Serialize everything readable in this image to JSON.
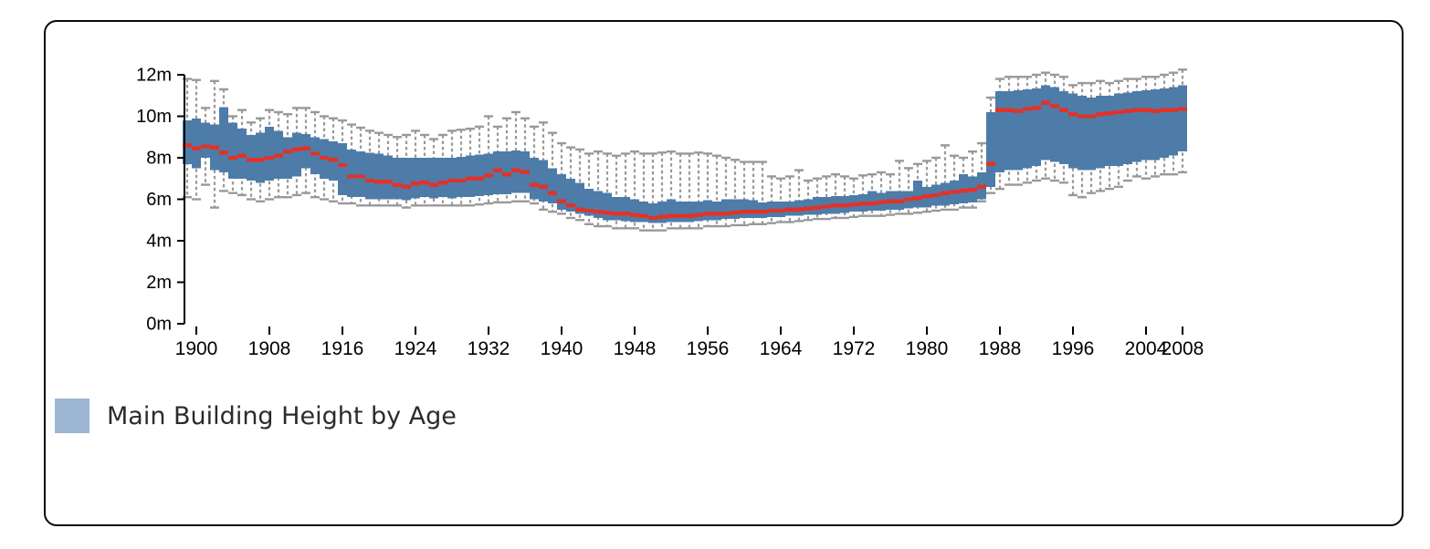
{
  "legend": {
    "label": "Main Building Height by Age",
    "swatch_color": "#9cb6d3"
  },
  "chart_data": {
    "type": "boxplot",
    "title": "Main Building Height by Age",
    "unit": "m",
    "xlabel": "",
    "ylabel": "",
    "grid": false,
    "legend_position": "bottom-left",
    "ylim": [
      0,
      12
    ],
    "xlim": [
      1898.5,
      2009.5
    ],
    "y_tick_labels": [
      "0m",
      "2m",
      "4m",
      "6m",
      "8m",
      "10m",
      "12m"
    ],
    "y_tick_values": [
      0,
      2,
      4,
      6,
      8,
      10,
      12
    ],
    "x_tick_labels": [
      "1900",
      "1908",
      "1916",
      "1924",
      "1932",
      "1940",
      "1948",
      "1956",
      "1964",
      "1972",
      "1980",
      "1988",
      "1996",
      "2004",
      "2008"
    ],
    "x_tick_values": [
      1900,
      1908,
      1916,
      1924,
      1932,
      1940,
      1948,
      1956,
      1964,
      1972,
      1980,
      1988,
      1996,
      2004,
      2008
    ],
    "colors": {
      "box_fill": "#4d7ca8",
      "median": "#e23227",
      "whisker": "#999999",
      "axis": "#000000",
      "tick_text": "#000000",
      "legend_swatch": "#9cb6d3"
    },
    "columns": [
      "year",
      "min",
      "q1",
      "median",
      "q3",
      "max"
    ],
    "rows": [
      [
        1899,
        6.1,
        7.7,
        8.6,
        9.8,
        11.8
      ],
      [
        1900,
        6.0,
        7.5,
        8.45,
        9.9,
        11.75
      ],
      [
        1901,
        6.7,
        8.0,
        8.55,
        9.7,
        10.4
      ],
      [
        1902,
        5.6,
        7.4,
        8.5,
        9.6,
        11.7
      ],
      [
        1903,
        6.4,
        7.3,
        8.25,
        10.45,
        11.3
      ],
      [
        1904,
        6.3,
        7.0,
        8.0,
        9.7,
        10.0
      ],
      [
        1905,
        6.2,
        7.0,
        8.1,
        9.4,
        10.3
      ],
      [
        1906,
        6.0,
        6.9,
        7.9,
        9.1,
        9.7
      ],
      [
        1907,
        5.9,
        6.8,
        7.9,
        9.2,
        9.9
      ],
      [
        1908,
        6.0,
        6.9,
        8.0,
        9.5,
        10.3
      ],
      [
        1909,
        6.1,
        7.0,
        8.1,
        9.3,
        10.2
      ],
      [
        1910,
        6.1,
        7.0,
        8.3,
        9.0,
        10.1
      ],
      [
        1911,
        6.2,
        7.1,
        8.4,
        9.2,
        10.4
      ],
      [
        1912,
        6.3,
        7.5,
        8.45,
        9.15,
        10.4
      ],
      [
        1913,
        6.1,
        7.2,
        8.2,
        9.0,
        10.2
      ],
      [
        1914,
        6.0,
        7.0,
        8.0,
        8.9,
        10.0
      ],
      [
        1915,
        5.9,
        6.9,
        7.9,
        8.8,
        9.9
      ],
      [
        1916,
        5.8,
        6.2,
        7.65,
        8.7,
        9.8
      ],
      [
        1917,
        5.8,
        6.1,
        7.1,
        8.4,
        9.6
      ],
      [
        1918,
        5.7,
        6.1,
        7.1,
        8.3,
        9.45
      ],
      [
        1919,
        5.7,
        6.0,
        6.9,
        8.25,
        9.3
      ],
      [
        1920,
        5.7,
        6.0,
        6.85,
        8.2,
        9.2
      ],
      [
        1921,
        5.7,
        6.0,
        6.85,
        8.1,
        9.1
      ],
      [
        1922,
        5.7,
        6.0,
        6.7,
        8.0,
        9.0
      ],
      [
        1923,
        5.6,
        5.95,
        6.6,
        8.0,
        9.1
      ],
      [
        1924,
        5.7,
        6.05,
        6.75,
        8.0,
        9.3
      ],
      [
        1925,
        5.7,
        6.1,
        6.8,
        8.0,
        9.1
      ],
      [
        1926,
        5.7,
        6.05,
        6.7,
        8.0,
        8.9
      ],
      [
        1927,
        5.7,
        6.1,
        6.8,
        8.0,
        9.1
      ],
      [
        1928,
        5.7,
        6.05,
        6.9,
        8.0,
        9.3
      ],
      [
        1929,
        5.7,
        6.1,
        6.9,
        8.05,
        9.35
      ],
      [
        1930,
        5.7,
        6.1,
        7.0,
        8.1,
        9.4
      ],
      [
        1931,
        5.75,
        6.15,
        7.0,
        8.15,
        9.5
      ],
      [
        1932,
        5.8,
        6.2,
        7.15,
        8.2,
        10.0
      ],
      [
        1933,
        5.85,
        6.25,
        7.4,
        8.3,
        9.5
      ],
      [
        1934,
        5.85,
        6.25,
        7.2,
        8.3,
        9.9
      ],
      [
        1935,
        5.9,
        6.3,
        7.4,
        8.35,
        10.2
      ],
      [
        1936,
        5.9,
        6.3,
        7.3,
        8.3,
        9.9
      ],
      [
        1937,
        5.8,
        6.0,
        6.7,
        8.0,
        9.5
      ],
      [
        1938,
        5.5,
        5.9,
        6.6,
        7.9,
        9.7
      ],
      [
        1939,
        5.4,
        5.8,
        6.3,
        7.5,
        9.2
      ],
      [
        1940,
        5.3,
        5.5,
        5.9,
        7.2,
        8.7
      ],
      [
        1941,
        5.1,
        5.4,
        5.7,
        7.0,
        8.5
      ],
      [
        1942,
        5.0,
        5.3,
        5.5,
        6.8,
        8.4
      ],
      [
        1943,
        4.8,
        5.2,
        5.45,
        6.5,
        8.2
      ],
      [
        1944,
        4.7,
        5.1,
        5.4,
        6.4,
        8.3
      ],
      [
        1945,
        4.7,
        5.0,
        5.35,
        6.3,
        8.2
      ],
      [
        1946,
        4.6,
        5.0,
        5.3,
        6.1,
        8.1
      ],
      [
        1947,
        4.6,
        4.95,
        5.3,
        6.1,
        8.2
      ],
      [
        1948,
        4.6,
        4.9,
        5.25,
        6.0,
        8.3
      ],
      [
        1949,
        4.5,
        4.9,
        5.2,
        5.9,
        8.2
      ],
      [
        1950,
        4.5,
        4.85,
        5.1,
        5.8,
        8.2
      ],
      [
        1951,
        4.5,
        4.85,
        5.15,
        5.9,
        8.25
      ],
      [
        1952,
        4.6,
        4.9,
        5.2,
        6.0,
        8.3
      ],
      [
        1953,
        4.6,
        4.9,
        5.2,
        5.9,
        8.2
      ],
      [
        1954,
        4.6,
        4.9,
        5.2,
        5.9,
        8.2
      ],
      [
        1955,
        4.6,
        4.95,
        5.25,
        5.9,
        8.25
      ],
      [
        1956,
        4.7,
        5.0,
        5.3,
        5.95,
        8.2
      ],
      [
        1957,
        4.7,
        5.0,
        5.3,
        5.9,
        8.1
      ],
      [
        1958,
        4.7,
        5.05,
        5.3,
        6.0,
        8.0
      ],
      [
        1959,
        4.75,
        5.05,
        5.35,
        6.0,
        7.9
      ],
      [
        1960,
        4.75,
        5.1,
        5.4,
        6.0,
        7.8
      ],
      [
        1961,
        4.8,
        5.1,
        5.4,
        5.95,
        7.8
      ],
      [
        1962,
        4.8,
        5.1,
        5.4,
        5.85,
        7.8
      ],
      [
        1963,
        4.85,
        5.15,
        5.45,
        5.9,
        7.1
      ],
      [
        1964,
        4.9,
        5.15,
        5.45,
        5.9,
        7.0
      ],
      [
        1965,
        4.9,
        5.2,
        5.5,
        5.9,
        7.1
      ],
      [
        1966,
        4.95,
        5.2,
        5.5,
        5.95,
        7.4
      ],
      [
        1967,
        5.0,
        5.25,
        5.55,
        6.0,
        6.9
      ],
      [
        1968,
        5.05,
        5.25,
        5.6,
        6.1,
        7.0
      ],
      [
        1969,
        5.05,
        5.3,
        5.65,
        6.1,
        7.1
      ],
      [
        1970,
        5.1,
        5.3,
        5.7,
        6.15,
        7.2
      ],
      [
        1971,
        5.1,
        5.35,
        5.7,
        6.15,
        7.1
      ],
      [
        1972,
        5.15,
        5.4,
        5.75,
        6.2,
        7.0
      ],
      [
        1973,
        5.2,
        5.4,
        5.8,
        6.25,
        7.15
      ],
      [
        1974,
        5.2,
        5.45,
        5.8,
        6.4,
        7.2
      ],
      [
        1975,
        5.2,
        5.45,
        5.85,
        6.3,
        7.3
      ],
      [
        1976,
        5.25,
        5.5,
        5.9,
        6.4,
        7.2
      ],
      [
        1977,
        5.3,
        5.5,
        5.9,
        6.4,
        7.85
      ],
      [
        1978,
        5.3,
        5.55,
        6.0,
        6.4,
        7.5
      ],
      [
        1979,
        5.35,
        5.6,
        6.05,
        6.9,
        7.7
      ],
      [
        1980,
        5.4,
        5.6,
        6.15,
        6.6,
        7.85
      ],
      [
        1981,
        5.45,
        5.7,
        6.2,
        6.7,
        8.0
      ],
      [
        1982,
        5.5,
        5.7,
        6.3,
        6.8,
        8.6
      ],
      [
        1983,
        5.5,
        5.75,
        6.35,
        6.9,
        8.1
      ],
      [
        1984,
        5.6,
        5.8,
        6.4,
        7.2,
        8.0
      ],
      [
        1985,
        5.6,
        5.85,
        6.45,
        7.1,
        8.3
      ],
      [
        1986,
        5.9,
        6.0,
        6.6,
        7.3,
        8.7
      ],
      [
        1987,
        6.3,
        6.6,
        7.7,
        10.2,
        10.9
      ],
      [
        1988,
        6.5,
        7.3,
        10.3,
        11.2,
        11.8
      ],
      [
        1989,
        6.7,
        7.4,
        10.3,
        11.2,
        11.9
      ],
      [
        1990,
        6.7,
        7.4,
        10.25,
        11.25,
        11.9
      ],
      [
        1991,
        6.8,
        7.5,
        10.35,
        11.3,
        11.9
      ],
      [
        1992,
        6.9,
        7.6,
        10.4,
        11.35,
        12.0
      ],
      [
        1993,
        7.0,
        7.9,
        10.65,
        11.5,
        12.1
      ],
      [
        1994,
        6.9,
        7.8,
        10.5,
        11.4,
        12.0
      ],
      [
        1995,
        6.8,
        7.7,
        10.3,
        11.2,
        11.9
      ],
      [
        1996,
        6.2,
        7.5,
        10.1,
        11.1,
        11.5
      ],
      [
        1997,
        6.1,
        7.4,
        10.0,
        11.0,
        11.6
      ],
      [
        1998,
        6.3,
        7.4,
        10.0,
        10.9,
        11.6
      ],
      [
        1999,
        6.4,
        7.5,
        10.1,
        11.0,
        11.7
      ],
      [
        2000,
        6.5,
        7.6,
        10.15,
        11.0,
        11.6
      ],
      [
        2001,
        6.6,
        7.6,
        10.2,
        11.1,
        11.7
      ],
      [
        2002,
        6.9,
        7.7,
        10.25,
        11.15,
        11.8
      ],
      [
        2003,
        7.1,
        7.8,
        10.3,
        11.2,
        11.8
      ],
      [
        2004,
        7.0,
        7.9,
        10.3,
        11.25,
        11.9
      ],
      [
        2005,
        7.1,
        7.9,
        10.25,
        11.3,
        11.9
      ],
      [
        2006,
        7.2,
        8.0,
        10.3,
        11.35,
        12.0
      ],
      [
        2007,
        7.2,
        8.1,
        10.3,
        11.4,
        12.1
      ],
      [
        2008,
        7.3,
        8.3,
        10.35,
        11.5,
        12.25
      ]
    ]
  }
}
